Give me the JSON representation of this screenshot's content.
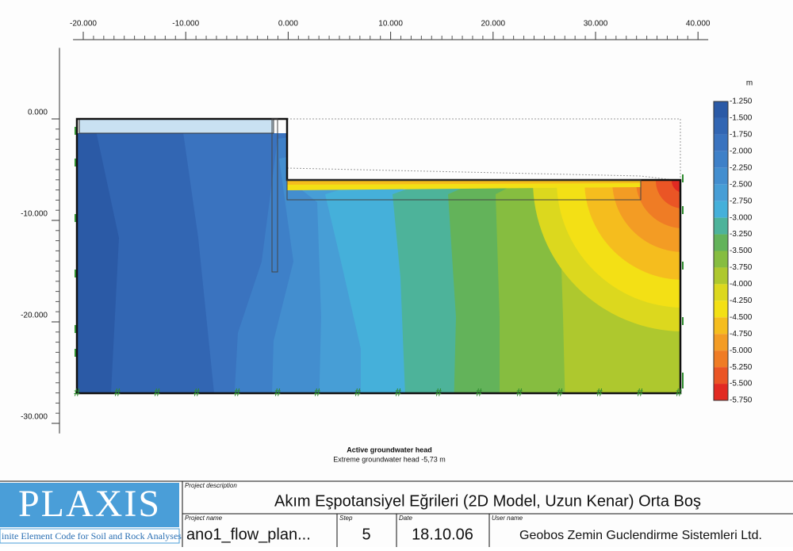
{
  "chart_data": {
    "type": "contour",
    "title": "Active groundwater head",
    "subtitle": "Extreme groundwater head -5,73 m",
    "xlim": [
      -21,
      41
    ],
    "ylim": [
      -31,
      7
    ],
    "xticks": [
      {
        "value": -20,
        "label": "-20.000"
      },
      {
        "value": -10,
        "label": "-10.000"
      },
      {
        "value": 0,
        "label": "0.000"
      },
      {
        "value": 10,
        "label": "10.000"
      },
      {
        "value": 20,
        "label": "20.000"
      },
      {
        "value": 30,
        "label": "30.000"
      },
      {
        "value": 40,
        "label": "40.000"
      }
    ],
    "yticks": [
      {
        "value": 0,
        "label": "0.000"
      },
      {
        "value": -10,
        "label": "-10.000"
      },
      {
        "value": -20,
        "label": "-20.000"
      },
      {
        "value": -30,
        "label": "-30.000"
      }
    ],
    "colorbar": {
      "unit": "m",
      "levels": [
        {
          "value": -1.25,
          "label": "-1.250"
        },
        {
          "value": -1.5,
          "label": "-1.500"
        },
        {
          "value": -1.75,
          "label": "-1.750"
        },
        {
          "value": -2,
          "label": "-2.000"
        },
        {
          "value": -2.25,
          "label": "-2.250"
        },
        {
          "value": -2.5,
          "label": "-2.500"
        },
        {
          "value": -2.75,
          "label": "-2.750"
        },
        {
          "value": -3,
          "label": "-3.000"
        },
        {
          "value": -3.25,
          "label": "-3.250"
        },
        {
          "value": -3.5,
          "label": "-3.500"
        },
        {
          "value": -3.75,
          "label": "-3.750"
        },
        {
          "value": -4,
          "label": "-4.000"
        },
        {
          "value": -4.25,
          "label": "-4.250"
        },
        {
          "value": -4.5,
          "label": "-4.500"
        },
        {
          "value": -4.75,
          "label": "-4.750"
        },
        {
          "value": -5,
          "label": "-5.000"
        },
        {
          "value": -5.25,
          "label": "-5.250"
        },
        {
          "value": -5.5,
          "label": "-5.500"
        },
        {
          "value": -5.75,
          "label": "-5.750"
        }
      ],
      "colors": [
        "#2b5aa6",
        "#3266b3",
        "#3a73bf",
        "#3e80c8",
        "#438ecf",
        "#479ed6",
        "#45b0da",
        "#4db39a",
        "#63b35a",
        "#86bd40",
        "#aec82e",
        "#dcd81e",
        "#f3e015",
        "#f5bd1e",
        "#f39c24",
        "#ef7c25",
        "#ea5525",
        "#e22a22"
      ]
    }
  },
  "title_block": {
    "logo": "PLAXIS",
    "tagline": "inite Element Code for Soil and Rock Analyses",
    "description_label": "Project description",
    "description": "Akım Eşpotansiyel Eğrileri (2D Model, Uzun Kenar) Orta Boş",
    "project_label": "Project name",
    "project": "ano1_flow_plan...",
    "step_label": "Step",
    "step": "5",
    "date_label": "Date",
    "date": "18.10.06",
    "user_label": "User name",
    "user": "Geobos Zemin Guclendirme Sistemleri Ltd."
  }
}
